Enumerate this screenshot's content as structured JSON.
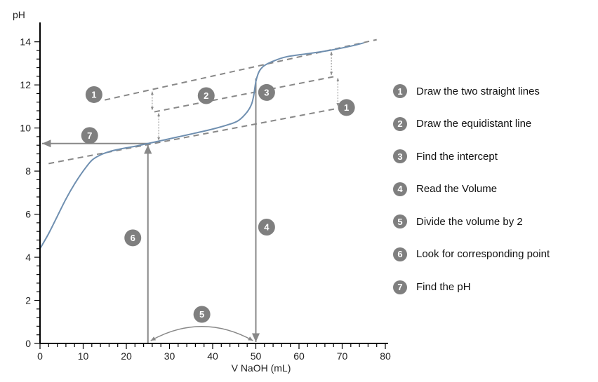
{
  "chart_data": {
    "type": "line",
    "title": "",
    "xlabel": "V NaOH (mL)",
    "ylabel": "pH",
    "xlim": [
      0,
      80
    ],
    "ylim": [
      0,
      14.9
    ],
    "x_ticks": [
      0,
      10,
      20,
      30,
      40,
      50,
      60,
      70,
      80
    ],
    "y_ticks": [
      0,
      2,
      4,
      6,
      8,
      10,
      12,
      14
    ],
    "grid": false,
    "series": [
      {
        "role": "titration-curve",
        "color": "#6f8fb0",
        "x": [
          0,
          2,
          4,
          6,
          8,
          10,
          12,
          14,
          16,
          18,
          20,
          22,
          25,
          30,
          35,
          40,
          44,
          46,
          48,
          49,
          49.5,
          50,
          50.5,
          51,
          52,
          54,
          57,
          62,
          67,
          72,
          75
        ],
        "y": [
          4.4,
          5.1,
          5.9,
          6.7,
          7.4,
          8.0,
          8.5,
          8.75,
          8.9,
          9.0,
          9.08,
          9.15,
          9.28,
          9.5,
          9.72,
          9.95,
          10.18,
          10.35,
          10.75,
          11.1,
          11.5,
          12.15,
          12.5,
          12.7,
          12.9,
          13.1,
          13.3,
          13.45,
          13.6,
          13.8,
          13.95
        ]
      }
    ],
    "construction_lines": {
      "color": "#888888",
      "upper": {
        "x": [
          15,
          78
        ],
        "y": [
          11.3,
          14.1
        ]
      },
      "middle": {
        "x": [
          26.5,
          68.5
        ],
        "y": [
          10.75,
          12.4
        ]
      },
      "lower": {
        "x": [
          2,
          70
        ],
        "y": [
          8.35,
          10.95
        ]
      }
    },
    "half_volume": 25,
    "equivalence_volume": 50,
    "half_equivalence_pH": 9.28,
    "annotations": [
      {
        "n": "1",
        "x": 12.5,
        "y": 11.55
      },
      {
        "n": "1",
        "x": 71,
        "y": 10.95
      },
      {
        "n": "2",
        "x": 38.5,
        "y": 11.5
      },
      {
        "n": "3",
        "x": 52.5,
        "y": 11.65
      },
      {
        "n": "4",
        "x": 52.5,
        "y": 5.4
      },
      {
        "n": "5",
        "x": 37.5,
        "y": 1.35
      },
      {
        "n": "6",
        "x": 21.5,
        "y": 4.9
      },
      {
        "n": "7",
        "x": 11.5,
        "y": 9.65
      }
    ]
  },
  "legend": [
    {
      "n": "1",
      "label": "Draw the two straight lines"
    },
    {
      "n": "2",
      "label": "Draw the equidistant line"
    },
    {
      "n": "3",
      "label": "Find the intercept"
    },
    {
      "n": "4",
      "label": "Read the Volume"
    },
    {
      "n": "5",
      "label": "Divide the volume by 2"
    },
    {
      "n": "6",
      "label": "Look for corresponding point"
    },
    {
      "n": "7",
      "label": "Find the pH"
    }
  ]
}
